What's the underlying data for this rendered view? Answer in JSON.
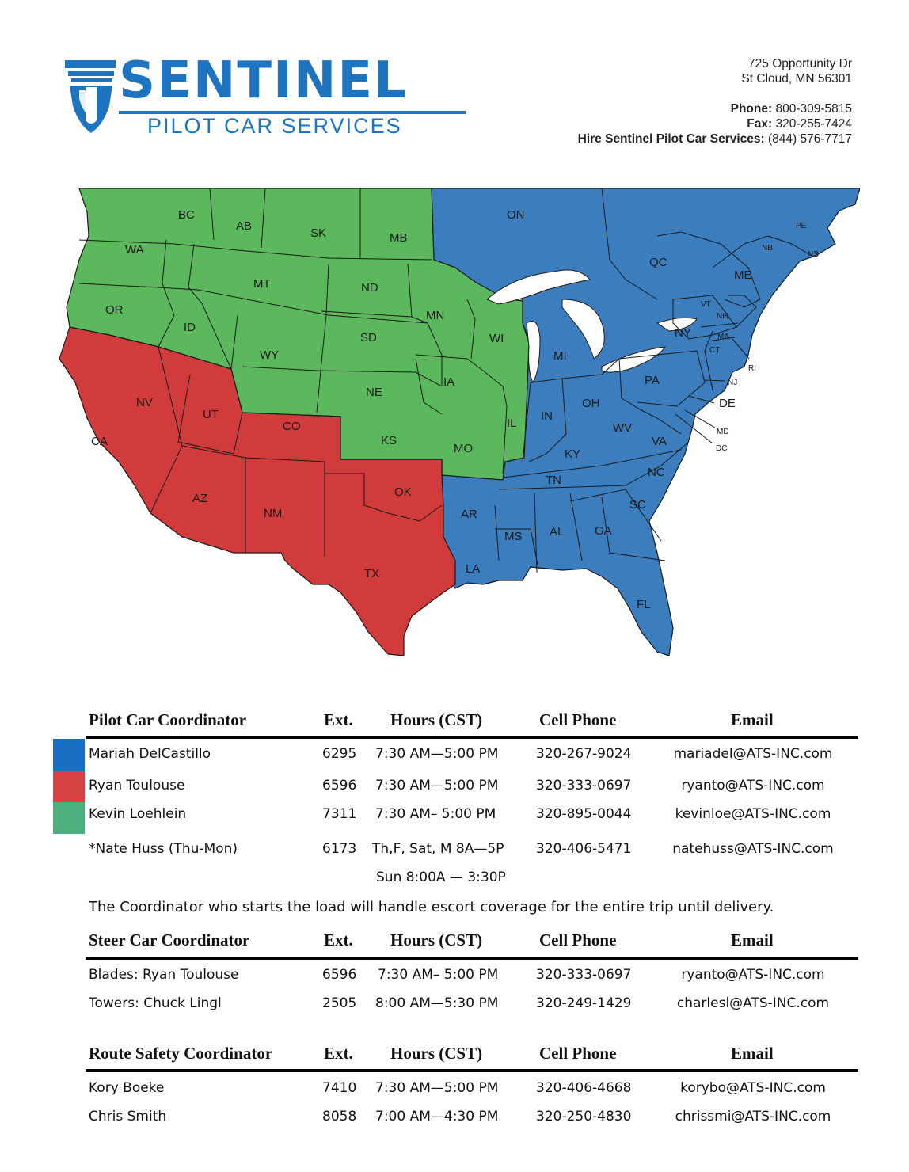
{
  "header": {
    "company": "SENTINEL",
    "tagline": "PILOT CAR SERVICES",
    "address_line1": "725 Opportunity Dr",
    "address_line2": "St Cloud, MN 56301",
    "phone_label": "Phone:",
    "phone": "800-309-5815",
    "fax_label": "Fax:",
    "fax": "320-255-7424",
    "hire_label": "Hire Sentinel Pilot Car Services:",
    "hire_phone": "(844) 576-7717"
  },
  "colors": {
    "blue": "#3b7dbd",
    "red": "#d13b3b",
    "green": "#5cb85c",
    "brand": "#1f74c0",
    "swatch_blue": "#1a6fc4",
    "swatch_red": "#d64141",
    "swatch_green": "#4caf7d"
  },
  "map": {
    "labels": {
      "BC": "BC",
      "AB": "AB",
      "SK": "SK",
      "MB": "MB",
      "ON": "ON",
      "QC": "QC",
      "PE": "PE",
      "NB": "NB",
      "NS": "NS",
      "WA": "WA",
      "OR": "OR",
      "CA": "CA",
      "NV": "NV",
      "ID": "ID",
      "MT": "MT",
      "WY": "WY",
      "UT": "UT",
      "AZ": "AZ",
      "CO": "CO",
      "NM": "NM",
      "ND": "ND",
      "SD": "SD",
      "NE": "NE",
      "KS": "KS",
      "OK": "OK",
      "TX": "TX",
      "MN": "MN",
      "IA": "IA",
      "MO": "MO",
      "AR": "AR",
      "LA": "LA",
      "WI": "WI",
      "IL": "IL",
      "MI": "MI",
      "IN": "IN",
      "OH": "OH",
      "KY": "KY",
      "TN": "TN",
      "MS": "MS",
      "AL": "AL",
      "GA": "GA",
      "FL": "FL",
      "SC": "SC",
      "NC": "NC",
      "VA": "VA",
      "WV": "WV",
      "PA": "PA",
      "NY": "NY",
      "ME": "ME",
      "VT": "VT",
      "NH": "NH",
      "MA": "MA",
      "CT": "CT",
      "RI": "RI",
      "NJ": "NJ",
      "DE": "DE",
      "MD": "MD",
      "DC": "DC"
    }
  },
  "pilot": {
    "headers": {
      "name": "Pilot Car Coordinator",
      "ext": "Ext.",
      "hours": "Hours (CST)",
      "cell": "Cell Phone",
      "email": "Email"
    },
    "rows": [
      {
        "name": "Mariah DelCastillo",
        "ext": "6295",
        "hours": "7:30 AM—5:00 PM",
        "cell": "320-267-9024",
        "email": "mariadel@ATS-INC.com"
      },
      {
        "name": "Ryan Toulouse",
        "ext": "6596",
        "hours": "7:30 AM—5:00 PM",
        "cell": "320-333-0697",
        "email": "ryanto@ATS-INC.com"
      },
      {
        "name": "Kevin Loehlein",
        "ext": "7311",
        "hours": "7:30 AM– 5:00 PM",
        "cell": "320-895-0044",
        "email": "kevinloe@ATS-INC.com"
      },
      {
        "name": "*Nate Huss (Thu-Mon)",
        "ext": "6173",
        "hours": "Th,F, Sat, M  8A—5P",
        "hours2": "Sun 8:00A — 3:30P",
        "cell": "320-406-5471",
        "email": "natehuss@ATS-INC.com"
      }
    ],
    "note": "The Coordinator who starts the load will handle escort coverage for the entire trip until delivery."
  },
  "steer": {
    "headers": {
      "name": "Steer Car Coordinator",
      "ext": "Ext.",
      "hours": "Hours (CST)",
      "cell": "Cell Phone",
      "email": "Email"
    },
    "rows": [
      {
        "name": "Blades:  Ryan Toulouse",
        "ext": "6596",
        "hours": "7:30 AM– 5:00 PM",
        "cell": "320-333-0697",
        "email": "ryanto@ATS-INC.com"
      },
      {
        "name": "Towers:  Chuck Lingl",
        "ext": "2505",
        "hours": "8:00 AM—5:30 PM",
        "cell": "320-249-1429",
        "email": "charlesl@ATS-INC.com"
      }
    ]
  },
  "route": {
    "headers": {
      "name": "Route Safety Coordinator",
      "ext": "Ext.",
      "hours": "Hours (CST)",
      "cell": "Cell Phone",
      "email": "Email"
    },
    "rows": [
      {
        "name": "Kory Boeke",
        "ext": "7410",
        "hours": "7:30 AM—5:00 PM",
        "cell": "320-406-4668",
        "email": "korybo@ATS-INC.com"
      },
      {
        "name": "Chris Smith",
        "ext": "8058",
        "hours": "7:00 AM—4:30 PM",
        "cell": "320-250-4830",
        "email": "chrissmi@ATS-INC.com"
      }
    ]
  }
}
